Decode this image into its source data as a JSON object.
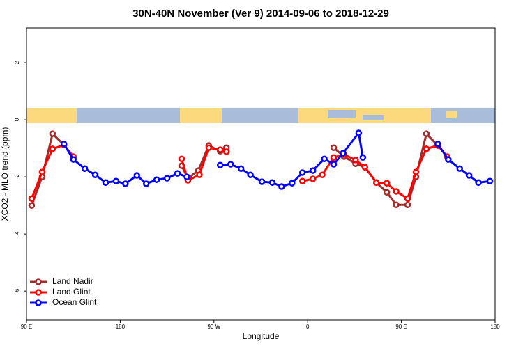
{
  "chart_data": {
    "type": "line",
    "title": "30N-40N November (Ver 9)   2014-09-06 to 2018-12-29",
    "xlabel": "Longitude",
    "ylabel": "XCO2 - MLO trend (ppm)",
    "xlim": [
      90,
      540
    ],
    "ylim": [
      -7.02,
      3.22
    ],
    "xticks": [
      {
        "value": 90,
        "label": "90 E"
      },
      180,
      {
        "value": 270,
        "label": "90 W"
      },
      {
        "value": 360,
        "label": "0"
      },
      {
        "value": 450,
        "label": "90 E"
      },
      {
        "value": 540,
        "label": "180"
      }
    ],
    "yticks": [
      -6,
      -4,
      -2,
      0,
      2
    ],
    "legend": "bottomleft",
    "series": [
      {
        "name": "Land Nadir",
        "color": "#a52a2a",
        "x": [
          95,
          105,
          115,
          126,
          135,
          null,
          239,
          245,
          255,
          265,
          276,
          282,
          null,
          385,
          395,
          406,
          415,
          426,
          436,
          445,
          456,
          464,
          474,
          485
        ],
        "values": [
          -3.0,
          -2.0,
          -0.49,
          -0.88,
          -1.32,
          null,
          -1.61,
          -2.05,
          -1.78,
          -0.9,
          -1.1,
          -0.98,
          null,
          -0.98,
          -1.29,
          -1.54,
          -1.66,
          -2.2,
          -2.54,
          -2.98,
          -2.98,
          -2.0,
          -0.49,
          -0.9
        ]
      },
      {
        "name": "Land Glint",
        "color": "#ff0000",
        "x": [
          95,
          105,
          115,
          126,
          135,
          null,
          239,
          245,
          256,
          265,
          276,
          282,
          null,
          355,
          365,
          374,
          385,
          395,
          406,
          415,
          426,
          436,
          445,
          456,
          464,
          474,
          485,
          494
        ],
        "values": [
          -2.76,
          -1.83,
          -1.02,
          -0.88,
          -1.29,
          null,
          -1.37,
          -2.12,
          -1.93,
          -0.98,
          -1.05,
          -1.12,
          null,
          -2.15,
          -2.07,
          -1.93,
          -1.32,
          -1.22,
          -1.41,
          -1.66,
          -2.2,
          -2.22,
          -2.51,
          -2.76,
          -1.83,
          -1.02,
          -0.9,
          -1.29
        ]
      },
      {
        "name": "Ocean Glint",
        "color": "#0000ff",
        "x": [
          126,
          135,
          146,
          156,
          166,
          176,
          185,
          196,
          205,
          215,
          225,
          235,
          244,
          null,
          276,
          286,
          296,
          305,
          316,
          326,
          335,
          345,
          355,
          365,
          376,
          385,
          394,
          409,
          413,
          null,
          485,
          495,
          506,
          515,
          524,
          535
        ],
        "values": [
          -0.85,
          -1.39,
          -1.71,
          -1.93,
          -2.2,
          -2.15,
          -2.24,
          -1.95,
          -2.24,
          -2.1,
          -2.05,
          -1.88,
          -2.0,
          null,
          -1.59,
          -1.56,
          -1.71,
          -1.93,
          -2.17,
          -2.2,
          -2.34,
          -2.22,
          -1.85,
          -1.78,
          -1.37,
          -1.56,
          -1.17,
          -0.46,
          -1.32,
          null,
          -0.85,
          -1.39,
          -1.71,
          -1.95,
          -2.2,
          -2.15
        ]
      }
    ]
  }
}
